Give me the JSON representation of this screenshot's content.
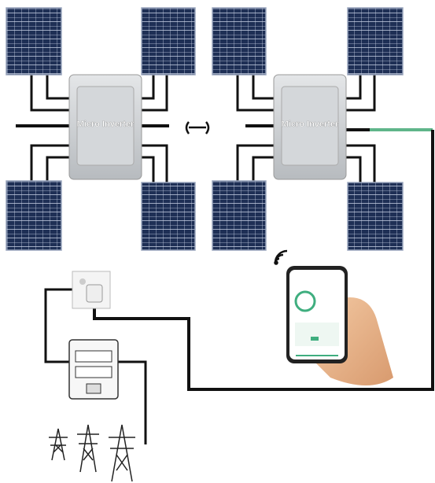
{
  "nodes": [
    {
      "label": "Micro Inverter"
    },
    {
      "label": "Micro Inverter"
    }
  ]
}
